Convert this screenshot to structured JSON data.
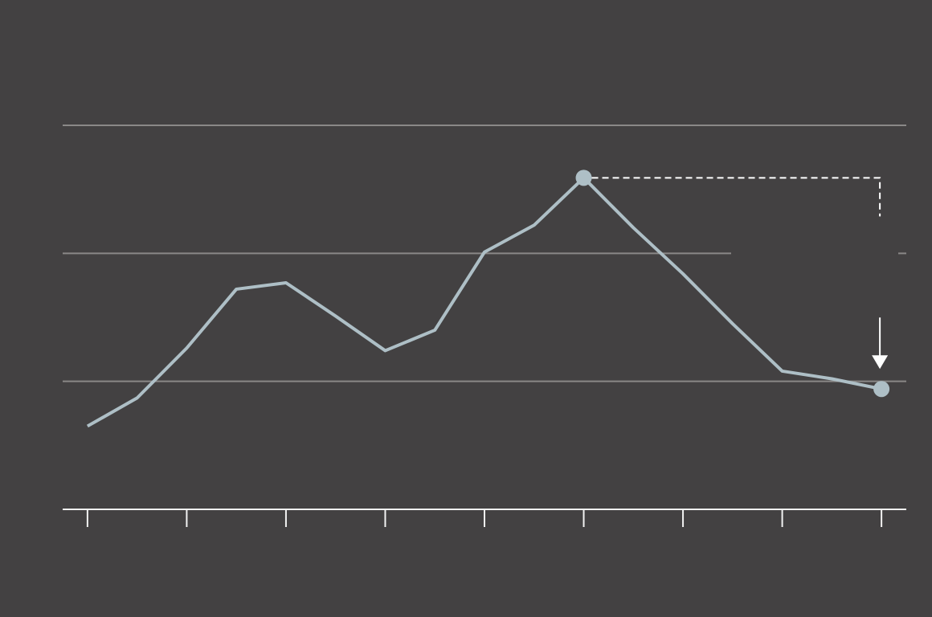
{
  "chart_data": {
    "type": "line",
    "x": [
      0,
      1,
      2,
      3,
      4,
      5,
      6,
      7,
      8,
      9,
      10,
      11,
      12,
      13,
      14,
      15,
      16
    ],
    "series": [
      {
        "color": "#aebfc6",
        "values": [
          0.65,
          0.87,
          1.26,
          1.72,
          1.77,
          1.51,
          1.24,
          1.4,
          2.01,
          2.22,
          2.59,
          2.2,
          1.84,
          1.45,
          1.08,
          1.02,
          0.94
        ]
      }
    ],
    "markers": [
      10,
      16
    ],
    "xlim": [
      -0.5,
      16.5
    ],
    "xticks": [
      0,
      2,
      4,
      6,
      8,
      10,
      12,
      14,
      16
    ],
    "ylim": [
      0,
      3
    ],
    "yticks": [
      1,
      2,
      3
    ],
    "grid": true
  }
}
